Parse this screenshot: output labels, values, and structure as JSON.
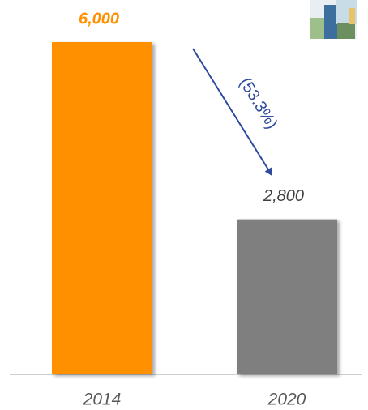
{
  "chart_data": {
    "type": "bar",
    "categories": [
      "2014",
      "2020"
    ],
    "values": [
      6000,
      2800
    ],
    "value_labels": [
      "6,000",
      "2,800"
    ],
    "colors": [
      "#ff9000",
      "#7f7f7f"
    ],
    "value_label_colors": [
      "#ff9000",
      "#404040"
    ],
    "ylim": [
      0,
      6000
    ],
    "annotation": "(53.3%)"
  }
}
